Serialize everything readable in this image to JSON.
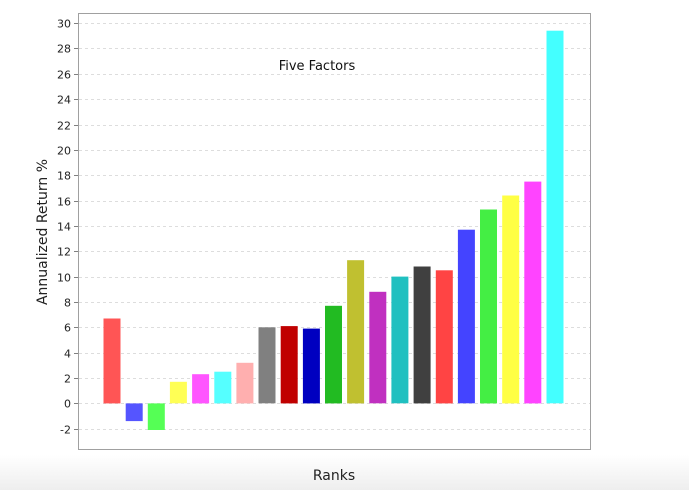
{
  "chart_data": {
    "type": "bar",
    "title": "Five Factors",
    "xlabel": "Ranks",
    "ylabel": "Annualized Return %",
    "ylim": [
      -3.6,
      30.8
    ],
    "yticks": [
      -2,
      0,
      2,
      4,
      6,
      8,
      10,
      12,
      14,
      16,
      18,
      20,
      22,
      24,
      26,
      28,
      30
    ],
    "grid": true,
    "values": [
      6.7,
      -1.4,
      -2.1,
      1.7,
      2.3,
      2.5,
      3.2,
      6.0,
      6.1,
      5.9,
      7.7,
      11.3,
      8.8,
      10.0,
      10.8,
      10.5,
      13.7,
      15.3,
      16.4,
      17.5,
      29.4
    ],
    "colors": [
      "#ff5555",
      "#5555ff",
      "#55ff55",
      "#ffff55",
      "#ff55ff",
      "#55ffff",
      "#ffafaf",
      "#808080",
      "#c00000",
      "#0000c0",
      "#22bb22",
      "#c0c030",
      "#c030c0",
      "#20c0c0",
      "#404040",
      "#ff4444",
      "#4444ff",
      "#44ee44",
      "#ffff44",
      "#ff44ff",
      "#44ffff"
    ]
  }
}
